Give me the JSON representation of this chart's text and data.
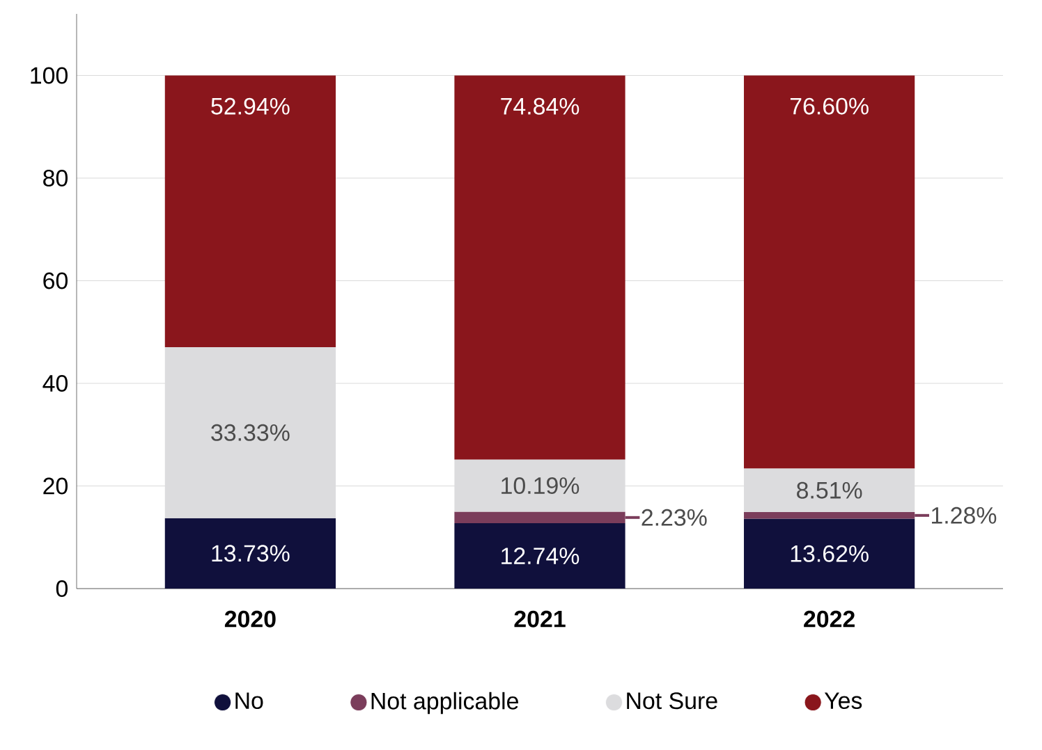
{
  "chart_data": {
    "type": "bar",
    "stacked": true,
    "categories": [
      "2020",
      "2021",
      "2022"
    ],
    "series": [
      {
        "name": "No",
        "color": "#10103c",
        "values": [
          13.73,
          12.74,
          13.62
        ],
        "value_labels": [
          "13.73%",
          "12.74%",
          "13.62%"
        ]
      },
      {
        "name": "Not applicable",
        "color": "#7b3d5b",
        "values": [
          null,
          2.23,
          1.28
        ],
        "value_labels": [
          null,
          "2.23%",
          "1.28%"
        ]
      },
      {
        "name": "Not Sure",
        "color": "#dcdcde",
        "values": [
          33.33,
          10.19,
          8.51
        ],
        "value_labels": [
          "33.33%",
          "10.19%",
          "8.51%"
        ]
      },
      {
        "name": "Yes",
        "color": "#8a161c",
        "values": [
          52.94,
          74.84,
          76.6
        ],
        "value_labels": [
          "52.94%",
          "74.84%",
          "76.60%"
        ]
      }
    ],
    "ylim": [
      0,
      112
    ],
    "yticks": [
      0,
      20,
      40,
      60,
      80,
      100
    ],
    "grid": "y",
    "legend": "bottom"
  }
}
